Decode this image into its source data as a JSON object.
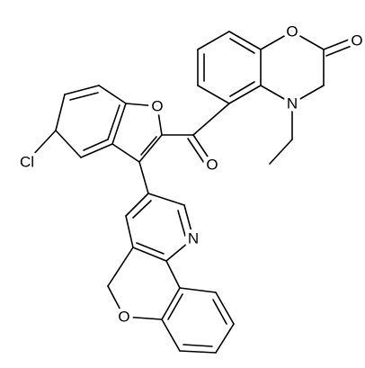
{
  "atoms": [
    "O",
    "O",
    "N",
    "O",
    "Cl",
    "O",
    "N",
    "O"
  ]
}
